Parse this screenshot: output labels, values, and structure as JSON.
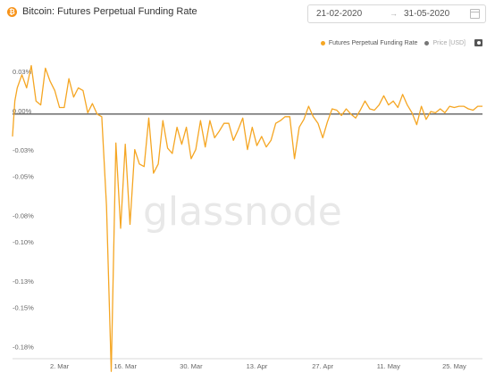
{
  "header": {
    "title": "Bitcoin: Futures Perpetual Funding Rate",
    "coin_icon": "bitcoin-icon",
    "date_from": "21-02-2020",
    "date_arrow": "→",
    "date_to": "31-05-2020"
  },
  "legend": {
    "items": [
      {
        "label": "Futures Perpetual Funding Rate",
        "color": "#f5a623"
      },
      {
        "label": "Price [USD]",
        "color": "#777777"
      }
    ],
    "screenshot_icon": "camera-icon"
  },
  "watermark": "glassnode",
  "chart_data": {
    "type": "line",
    "title": "Bitcoin: Futures Perpetual Funding Rate",
    "xlabel": "",
    "ylabel": "",
    "ylim": [
      -0.185,
      0.04
    ],
    "y_ticks": [
      0.03,
      0.0,
      -0.03,
      -0.05,
      -0.08,
      -0.1,
      -0.13,
      -0.15,
      -0.18
    ],
    "y_tick_labels": [
      "0.03%",
      "0.00%",
      "-0.03%",
      "-0.05%",
      "-0.08%",
      "-0.10%",
      "-0.13%",
      "-0.15%",
      "-0.18%"
    ],
    "x_ticks": [
      10,
      24,
      38,
      52,
      66,
      80,
      94
    ],
    "x_tick_labels": [
      "2. Mar",
      "16. Mar",
      "30. Mar",
      "13. Apr",
      "27. Apr",
      "11. May",
      "25. May"
    ],
    "xlim": [
      0,
      100
    ],
    "grid": false,
    "legend_position": "top-right",
    "zero_line": true,
    "series": [
      {
        "name": "Futures Perpetual Funding Rate",
        "color": "#f5a623",
        "x": [
          0,
          0.5,
          1,
          2,
          3,
          4,
          5,
          6,
          7,
          8,
          9,
          10,
          11,
          12,
          13,
          14,
          15,
          16,
          17,
          18,
          19,
          20,
          21,
          22,
          23,
          24,
          25,
          26,
          27,
          28,
          29,
          30,
          31,
          32,
          33,
          34,
          35,
          36,
          37,
          38,
          39,
          40,
          41,
          42,
          43,
          44,
          45,
          46,
          47,
          48,
          49,
          50,
          51,
          52,
          53,
          54,
          55,
          56,
          57,
          58,
          59,
          60,
          61,
          62,
          63,
          64,
          65,
          66,
          67,
          68,
          69,
          70,
          71,
          72,
          73,
          74,
          75,
          76,
          77,
          78,
          79,
          80,
          81,
          82,
          83,
          84,
          85,
          86,
          87,
          88,
          89,
          90,
          91,
          92,
          93,
          94,
          95,
          96,
          97,
          98,
          99,
          100
        ],
        "y": [
          -0.017,
          0.01,
          0.02,
          0.03,
          0.02,
          0.037,
          0.01,
          0.007,
          0.035,
          0.025,
          0.018,
          0.005,
          0.005,
          0.027,
          0.013,
          0.02,
          0.018,
          0.001,
          0.008,
          0.0,
          -0.002,
          -0.07,
          -0.196,
          -0.022,
          -0.087,
          -0.023,
          -0.084,
          -0.027,
          -0.038,
          -0.04,
          -0.003,
          -0.045,
          -0.038,
          -0.005,
          -0.026,
          -0.03,
          -0.01,
          -0.023,
          -0.01,
          -0.034,
          -0.027,
          -0.005,
          -0.025,
          -0.005,
          -0.018,
          -0.013,
          -0.007,
          -0.007,
          -0.02,
          -0.012,
          -0.003,
          -0.027,
          -0.01,
          -0.024,
          -0.017,
          -0.025,
          -0.02,
          -0.007,
          -0.005,
          -0.002,
          -0.002,
          -0.034,
          -0.01,
          -0.004,
          0.006,
          -0.002,
          -0.007,
          -0.018,
          -0.006,
          0.004,
          0.003,
          -0.001,
          0.004,
          0.0,
          -0.003,
          0.003,
          0.01,
          0.004,
          0.003,
          0.007,
          0.014,
          0.007,
          0.01,
          0.005,
          0.015,
          0.007,
          0.001,
          -0.008,
          0.006,
          -0.004,
          0.002,
          0.001,
          0.004,
          0.001,
          0.006,
          0.005,
          0.006,
          0.006,
          0.004,
          0.003,
          0.006,
          0.006
        ]
      }
    ]
  }
}
